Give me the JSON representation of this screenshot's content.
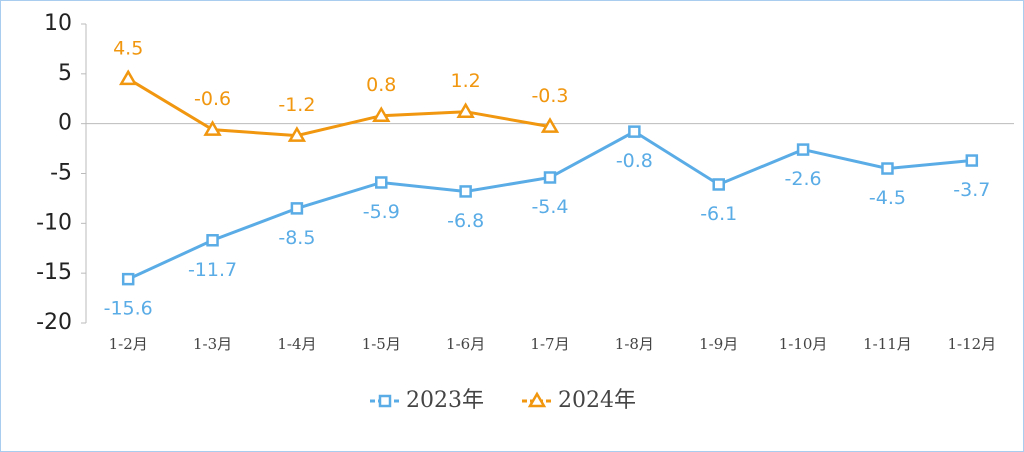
{
  "chart_data": {
    "type": "line",
    "categories": [
      "1-2月",
      "1-3月",
      "1-4月",
      "1-5月",
      "1-6月",
      "1-7月",
      "1-8月",
      "1-9月",
      "1-10月",
      "1-11月",
      "1-12月"
    ],
    "series": [
      {
        "name": "2023年",
        "color": "#5aace6",
        "marker": "square",
        "label_position": "below",
        "values": [
          -15.6,
          -11.7,
          -8.5,
          -5.9,
          -6.8,
          -5.4,
          -0.8,
          -6.1,
          -2.6,
          -4.5,
          -3.7
        ]
      },
      {
        "name": "2024年",
        "color": "#f0960f",
        "marker": "triangle",
        "label_position": "above",
        "values": [
          4.5,
          -0.6,
          -1.2,
          0.8,
          1.2,
          -0.3,
          null,
          null,
          null,
          null,
          null
        ]
      }
    ],
    "ylim": [
      -20,
      10
    ],
    "yticks": [
      -20,
      -15,
      -10,
      -5,
      0,
      5,
      10
    ],
    "legend": "bottom"
  }
}
